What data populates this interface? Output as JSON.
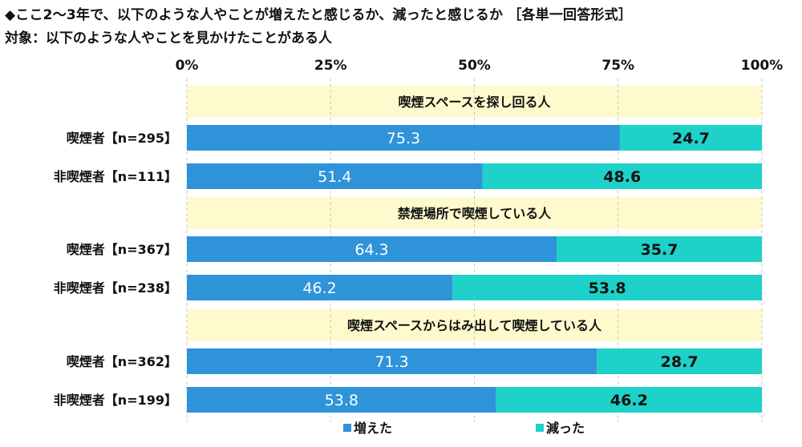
{
  "title": "◆ここ2～3年で、以下のような人やことが増えたと感じるか、減ったと感じるか ［各単一回答形式］",
  "subtitle": "対象：以下のような人やことを見かけたことがある人",
  "colors": {
    "increase": "#2E93D9",
    "decrease": "#1ED1C9",
    "header_band": "#FFFACD",
    "grid": "#c8c8c8"
  },
  "chart_data": {
    "type": "bar",
    "orientation": "horizontal",
    "stacked": true,
    "percent_scale": true,
    "xlim": [
      0,
      100
    ],
    "x_ticks": [
      "0%",
      "25%",
      "50%",
      "75%",
      "100%"
    ],
    "legend_position": "bottom",
    "series_names": [
      "増えた",
      "減った"
    ],
    "groups": [
      {
        "header": "喫煙スペースを探し回る人",
        "rows": [
          {
            "label": "喫煙者【n=295】",
            "values": [
              75.3,
              24.7
            ],
            "value_labels": [
              "75.3",
              "24.7"
            ]
          },
          {
            "label": "非喫煙者【n=111】",
            "values": [
              51.4,
              48.6
            ],
            "value_labels": [
              "51.4",
              "48.6"
            ]
          }
        ]
      },
      {
        "header": "禁煙場所で喫煙している人",
        "rows": [
          {
            "label": "喫煙者【n=367】",
            "values": [
              64.3,
              35.7
            ],
            "value_labels": [
              "64.3",
              "35.7"
            ]
          },
          {
            "label": "非喫煙者【n=238】",
            "values": [
              46.2,
              53.8
            ],
            "value_labels": [
              "46.2",
              "53.8"
            ]
          }
        ]
      },
      {
        "header": "喫煙スペースからはみ出して喫煙している人",
        "rows": [
          {
            "label": "喫煙者【n=362】",
            "values": [
              71.3,
              28.7
            ],
            "value_labels": [
              "71.3",
              "28.7"
            ]
          },
          {
            "label": "非喫煙者【n=199】",
            "values": [
              53.8,
              46.2
            ],
            "value_labels": [
              "53.8",
              "46.2"
            ]
          }
        ]
      }
    ]
  }
}
